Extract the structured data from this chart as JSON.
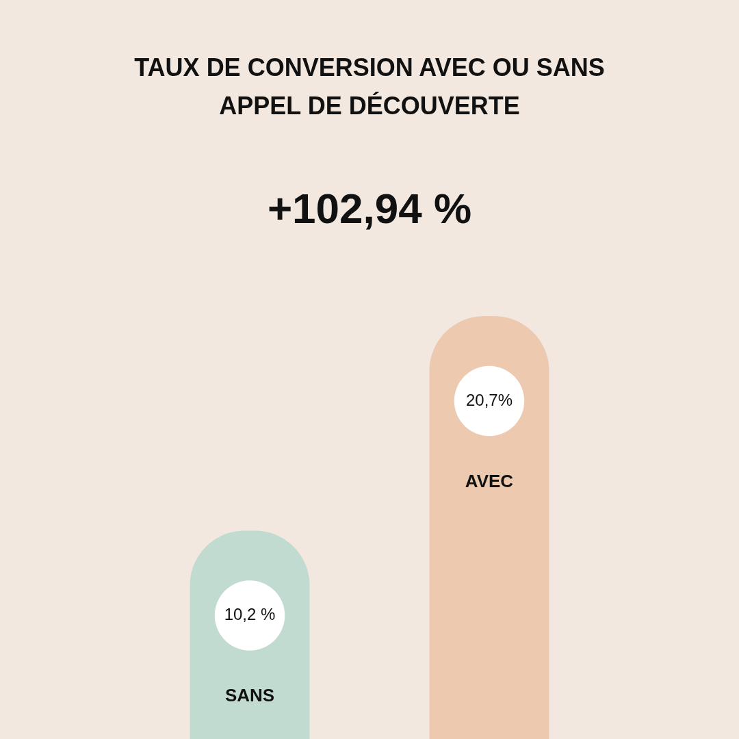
{
  "chart_data": {
    "type": "bar",
    "title": "TAUX DE CONVERSION AVEC OU SANS\nAPPEL DE DÉCOUVERTE",
    "annotations": [
      "+102,94 %"
    ],
    "categories": [
      "SANS",
      "AVEC"
    ],
    "values": [
      10.2,
      20.7
    ],
    "colors": [
      "#c2dbd0",
      "#edc9b0"
    ],
    "value_labels": [
      "10,2 %",
      "20,7%"
    ],
    "legend": false
  }
}
